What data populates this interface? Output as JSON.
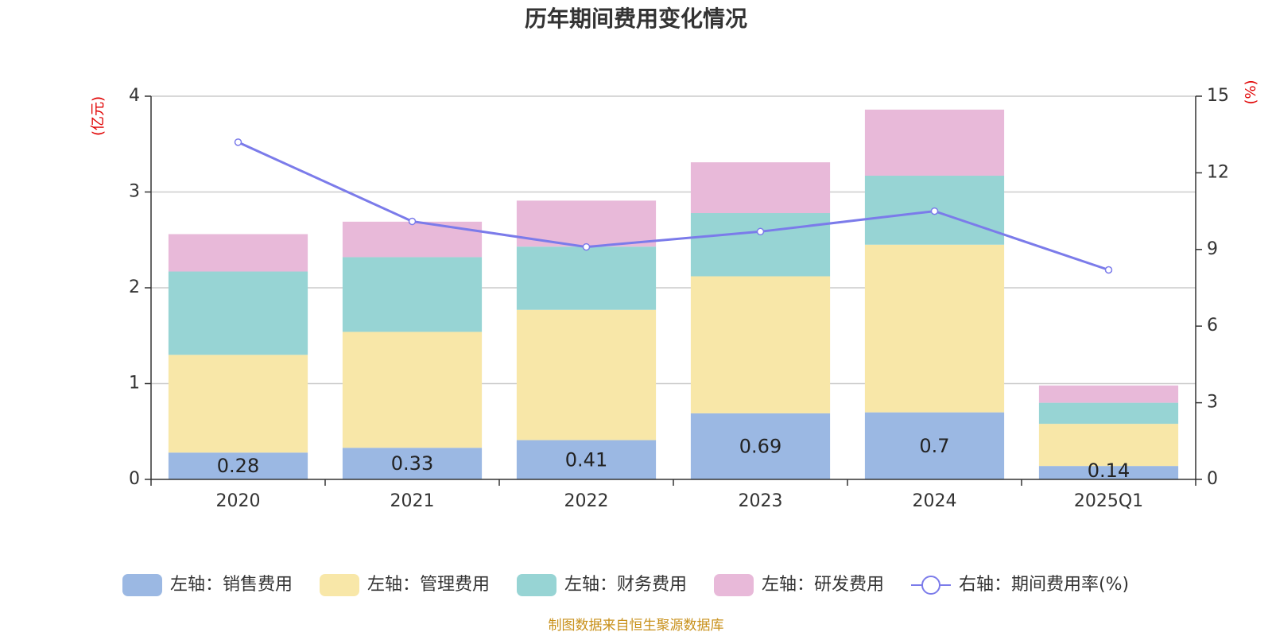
{
  "chart_data": {
    "type": "bar",
    "stacked": true,
    "title": "历年期间费用变化情况",
    "categories": [
      "2020",
      "2021",
      "2022",
      "2023",
      "2024",
      "2025Q1"
    ],
    "left_axis": {
      "unit": "(亿元)",
      "ylim": [
        0,
        4
      ],
      "ticks": [
        "0",
        "1",
        "2",
        "3",
        "4"
      ],
      "tick_values": [
        0,
        1,
        2,
        3,
        4
      ]
    },
    "right_axis": {
      "unit": "(%)",
      "ylim": [
        0,
        15
      ],
      "ticks": [
        "0",
        "3",
        "6",
        "9",
        "12",
        "15"
      ],
      "tick_values": [
        0,
        3,
        6,
        9,
        12,
        15
      ]
    },
    "series": [
      {
        "name": "左轴：销售费用",
        "type": "bar",
        "axis": "left",
        "color": "#9bb8e3",
        "values": [
          0.28,
          0.33,
          0.41,
          0.69,
          0.7,
          0.14
        ],
        "labels": [
          "0.28",
          "0.33",
          "0.41",
          "0.69",
          "0.7",
          "0.14"
        ]
      },
      {
        "name": "左轴：管理费用",
        "type": "bar",
        "axis": "left",
        "color": "#f8e7a8",
        "values": [
          1.02,
          1.21,
          1.36,
          1.43,
          1.75,
          0.44
        ]
      },
      {
        "name": "左轴：财务费用",
        "type": "bar",
        "axis": "left",
        "color": "#97d4d4",
        "values": [
          0.87,
          0.78,
          0.66,
          0.66,
          0.72,
          0.22
        ]
      },
      {
        "name": "左轴：研发费用",
        "type": "bar",
        "axis": "left",
        "color": "#e8b9d9",
        "values": [
          0.39,
          0.37,
          0.48,
          0.53,
          0.69,
          0.18
        ]
      },
      {
        "name": "右轴：期间费用率(%)",
        "type": "line",
        "axis": "right",
        "color": "#7b7bea",
        "values": [
          13.2,
          10.1,
          9.1,
          9.7,
          10.5,
          8.2
        ]
      }
    ],
    "grid": true,
    "legend_position": "bottom"
  },
  "source_note": "制图数据来自恒生聚源数据库"
}
